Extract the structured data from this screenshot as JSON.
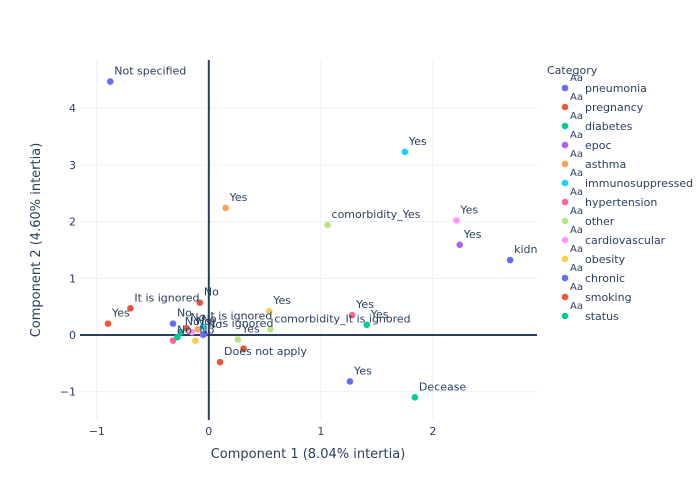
{
  "chart_data": {
    "type": "scatter",
    "xlabel": "Component 1 (8.04% intertia)",
    "ylabel": "Component 2 (4.60% intertia)",
    "xlim": [
      -1.15,
      2.93
    ],
    "ylim": [
      -1.5,
      4.85
    ],
    "xticks": [
      -1,
      0,
      1,
      2
    ],
    "yticks": [
      -1,
      0,
      1,
      2,
      3,
      4
    ],
    "grid": true,
    "legend": {
      "title": "Category",
      "placement": "right",
      "symbol_text": "Aa"
    },
    "series": [
      {
        "name": "pneumonia",
        "color": "#636efa",
        "points": [
          {
            "x": -0.88,
            "y": 4.47,
            "label": "Not specified"
          },
          {
            "x": -0.32,
            "y": 0.2,
            "label": "No"
          }
        ]
      },
      {
        "name": "pregnancy",
        "color": "#ef553b",
        "points": [
          {
            "x": -0.9,
            "y": 0.2,
            "label": "Yes"
          },
          {
            "x": -0.08,
            "y": 0.57,
            "label": "No"
          },
          {
            "x": -0.7,
            "y": 0.47,
            "label": "It is ignored"
          },
          {
            "x": 0.1,
            "y": -0.48,
            "label": "Does not apply"
          }
        ]
      },
      {
        "name": "diabetes",
        "color": "#00cc96",
        "points": [
          {
            "x": 1.41,
            "y": 0.18,
            "label": "Yes"
          },
          {
            "x": -0.25,
            "y": 0.05,
            "label": "No"
          }
        ]
      },
      {
        "name": "epoc",
        "color": "#ab63fa",
        "points": [
          {
            "x": 2.24,
            "y": 1.59,
            "label": "Yes"
          },
          {
            "x": -0.05,
            "y": 0.0,
            "label": "No"
          }
        ]
      },
      {
        "name": "asthma",
        "color": "#ffa15a",
        "points": [
          {
            "x": 0.15,
            "y": 2.24,
            "label": "Yes"
          },
          {
            "x": -0.1,
            "y": 0.1,
            "label": "No"
          }
        ]
      },
      {
        "name": "immunosuppressed",
        "color": "#19d3f3",
        "points": [
          {
            "x": 1.75,
            "y": 3.23,
            "label": "Yes"
          },
          {
            "x": -0.05,
            "y": 0.15,
            "label": "It is ignored"
          }
        ]
      },
      {
        "name": "hypertension",
        "color": "#ff6692",
        "points": [
          {
            "x": 1.28,
            "y": 0.35,
            "label": "Yes"
          },
          {
            "x": -0.32,
            "y": -0.1,
            "label": "No"
          }
        ]
      },
      {
        "name": "other",
        "color": "#b6e880",
        "points": [
          {
            "x": 1.06,
            "y": 1.94,
            "label": "comorbidity_Yes"
          },
          {
            "x": 0.26,
            "y": -0.08,
            "label": "Yes"
          },
          {
            "x": 0.55,
            "y": 0.1,
            "label": "comorbidity_It is ignored"
          }
        ]
      },
      {
        "name": "cardiovascular",
        "color": "#ff97ff",
        "points": [
          {
            "x": 2.21,
            "y": 2.02,
            "label": "Yes"
          },
          {
            "x": -0.15,
            "y": 0.05,
            "label": "No"
          }
        ]
      },
      {
        "name": "obesity",
        "color": "#fecb52",
        "points": [
          {
            "x": 0.54,
            "y": 0.42,
            "label": "Yes"
          },
          {
            "x": -0.12,
            "y": -0.1,
            "label": "No"
          }
        ]
      },
      {
        "name": "chronic",
        "color": "#636efa",
        "points": [
          {
            "x": 2.69,
            "y": 1.32,
            "label": "kidn"
          },
          {
            "x": 1.26,
            "y": -0.82,
            "label": "Yes"
          },
          {
            "x": -0.04,
            "y": 0.02,
            "label": "It is ignored"
          }
        ]
      },
      {
        "name": "smoking",
        "color": "#ef553b",
        "points": [
          {
            "x": 0.31,
            "y": -0.24,
            "label": ""
          },
          {
            "x": -0.2,
            "y": 0.12,
            "label": "No"
          }
        ]
      },
      {
        "name": "status",
        "color": "#00cc96",
        "points": [
          {
            "x": 1.84,
            "y": -1.1,
            "label": "Decease"
          },
          {
            "x": -0.28,
            "y": -0.04,
            "label": ""
          }
        ]
      }
    ]
  }
}
